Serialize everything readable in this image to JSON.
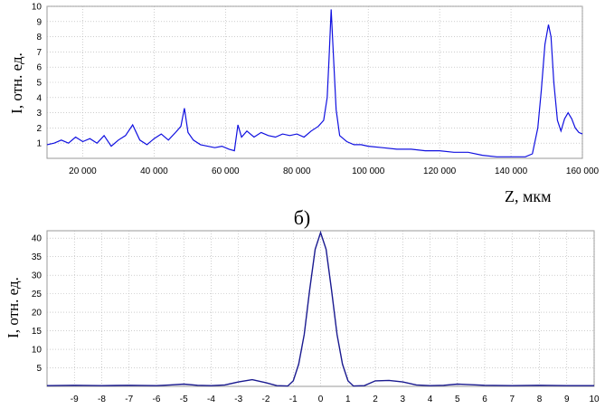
{
  "chart_data": [
    {
      "type": "line",
      "ylabel": "I, отн. ед.",
      "xlabel": "Z, мкм",
      "xlim": [
        10000,
        160000
      ],
      "ylim": [
        0,
        10
      ],
      "grid": true,
      "line_color": "#1010e0",
      "x_ticks": [
        20000,
        40000,
        60000,
        80000,
        100000,
        120000,
        140000,
        160000
      ],
      "x_tick_labels": [
        "20 000",
        "40 000",
        "60 000",
        "80 000",
        "100 000",
        "120 000",
        "140 000",
        "160 000"
      ],
      "y_ticks": [
        1,
        2,
        3,
        4,
        5,
        6,
        7,
        8,
        9,
        10
      ],
      "y_tick_labels": [
        "1",
        "2",
        "3",
        "4",
        "5",
        "6",
        "7",
        "8",
        "9",
        "10"
      ],
      "x": [
        10000,
        12000,
        14000,
        16000,
        18000,
        20000,
        22000,
        24000,
        26000,
        28000,
        30000,
        32000,
        34000,
        36000,
        38000,
        40000,
        42000,
        44000,
        46000,
        47500,
        48500,
        49500,
        51000,
        53000,
        55000,
        57000,
        59000,
        61000,
        62500,
        63500,
        64500,
        66000,
        68000,
        70000,
        72000,
        74000,
        76000,
        78000,
        80000,
        82000,
        84000,
        86000,
        87500,
        88500,
        89000,
        89600,
        90200,
        91000,
        92000,
        94000,
        96000,
        98000,
        100000,
        104000,
        108000,
        112000,
        116000,
        120000,
        124000,
        128000,
        132000,
        136000,
        140000,
        144000,
        146000,
        147500,
        148500,
        149500,
        150500,
        151200,
        152000,
        153000,
        154000,
        155000,
        156000,
        157000,
        158000,
        159000,
        160000
      ],
      "y": [
        0.9,
        1.0,
        1.2,
        1.0,
        1.4,
        1.1,
        1.3,
        1.0,
        1.5,
        0.8,
        1.2,
        1.5,
        2.2,
        1.2,
        0.9,
        1.3,
        1.6,
        1.2,
        1.7,
        2.1,
        3.3,
        1.7,
        1.2,
        0.9,
        0.8,
        0.7,
        0.8,
        0.6,
        0.5,
        2.2,
        1.4,
        1.8,
        1.4,
        1.7,
        1.5,
        1.4,
        1.6,
        1.5,
        1.6,
        1.4,
        1.8,
        2.1,
        2.5,
        4.0,
        6.5,
        9.8,
        7.0,
        3.2,
        1.5,
        1.1,
        0.9,
        0.9,
        0.8,
        0.7,
        0.6,
        0.6,
        0.5,
        0.5,
        0.4,
        0.4,
        0.2,
        0.1,
        0.1,
        0.1,
        0.3,
        2.0,
        4.5,
        7.5,
        8.8,
        8.0,
        5.0,
        2.5,
        1.8,
        2.6,
        3.0,
        2.6,
        2.0,
        1.7,
        1.6
      ]
    },
    {
      "type": "line",
      "ylabel": "I, отн. ед.",
      "xlabel": "",
      "xlim": [
        -10,
        10
      ],
      "ylim": [
        0,
        42
      ],
      "grid": true,
      "line_color": "#1a1a90",
      "x_ticks": [
        -9,
        -8,
        -7,
        -6,
        -5,
        -4,
        -3,
        -2,
        -1,
        0,
        1,
        2,
        3,
        4,
        5,
        6,
        7,
        8,
        9,
        10
      ],
      "x_tick_labels": [
        "-9",
        "-8",
        "-7",
        "-6",
        "-5",
        "-4",
        "-3",
        "-2",
        "-1",
        "0",
        "1",
        "2",
        "3",
        "4",
        "5",
        "6",
        "7",
        "8",
        "9",
        "10"
      ],
      "y_ticks": [
        5,
        10,
        15,
        20,
        25,
        30,
        35,
        40
      ],
      "y_tick_labels": [
        "5",
        "10",
        "15",
        "20",
        "25",
        "30",
        "35",
        "40"
      ],
      "x": [
        -10,
        -9,
        -8,
        -7,
        -6,
        -5.5,
        -5,
        -4.5,
        -4,
        -3.5,
        -3,
        -2.5,
        -2,
        -1.6,
        -1.2,
        -1,
        -0.8,
        -0.6,
        -0.4,
        -0.2,
        0,
        0.2,
        0.4,
        0.6,
        0.8,
        1,
        1.2,
        1.6,
        2,
        2.5,
        3,
        3.5,
        4,
        4.5,
        5,
        6,
        7,
        8,
        9,
        10
      ],
      "y": [
        0.2,
        0.3,
        0.2,
        0.3,
        0.2,
        0.4,
        0.6,
        0.3,
        0.2,
        0.4,
        1.2,
        1.8,
        1.0,
        0.2,
        0.1,
        1.5,
        6.0,
        14.0,
        26.0,
        37.0,
        41.5,
        37.0,
        26.0,
        14.0,
        6.0,
        1.5,
        0.1,
        0.2,
        1.5,
        1.6,
        1.2,
        0.4,
        0.2,
        0.3,
        0.6,
        0.3,
        0.2,
        0.3,
        0.2,
        0.2
      ]
    }
  ],
  "caption": {
    "panel_label": "б)"
  }
}
